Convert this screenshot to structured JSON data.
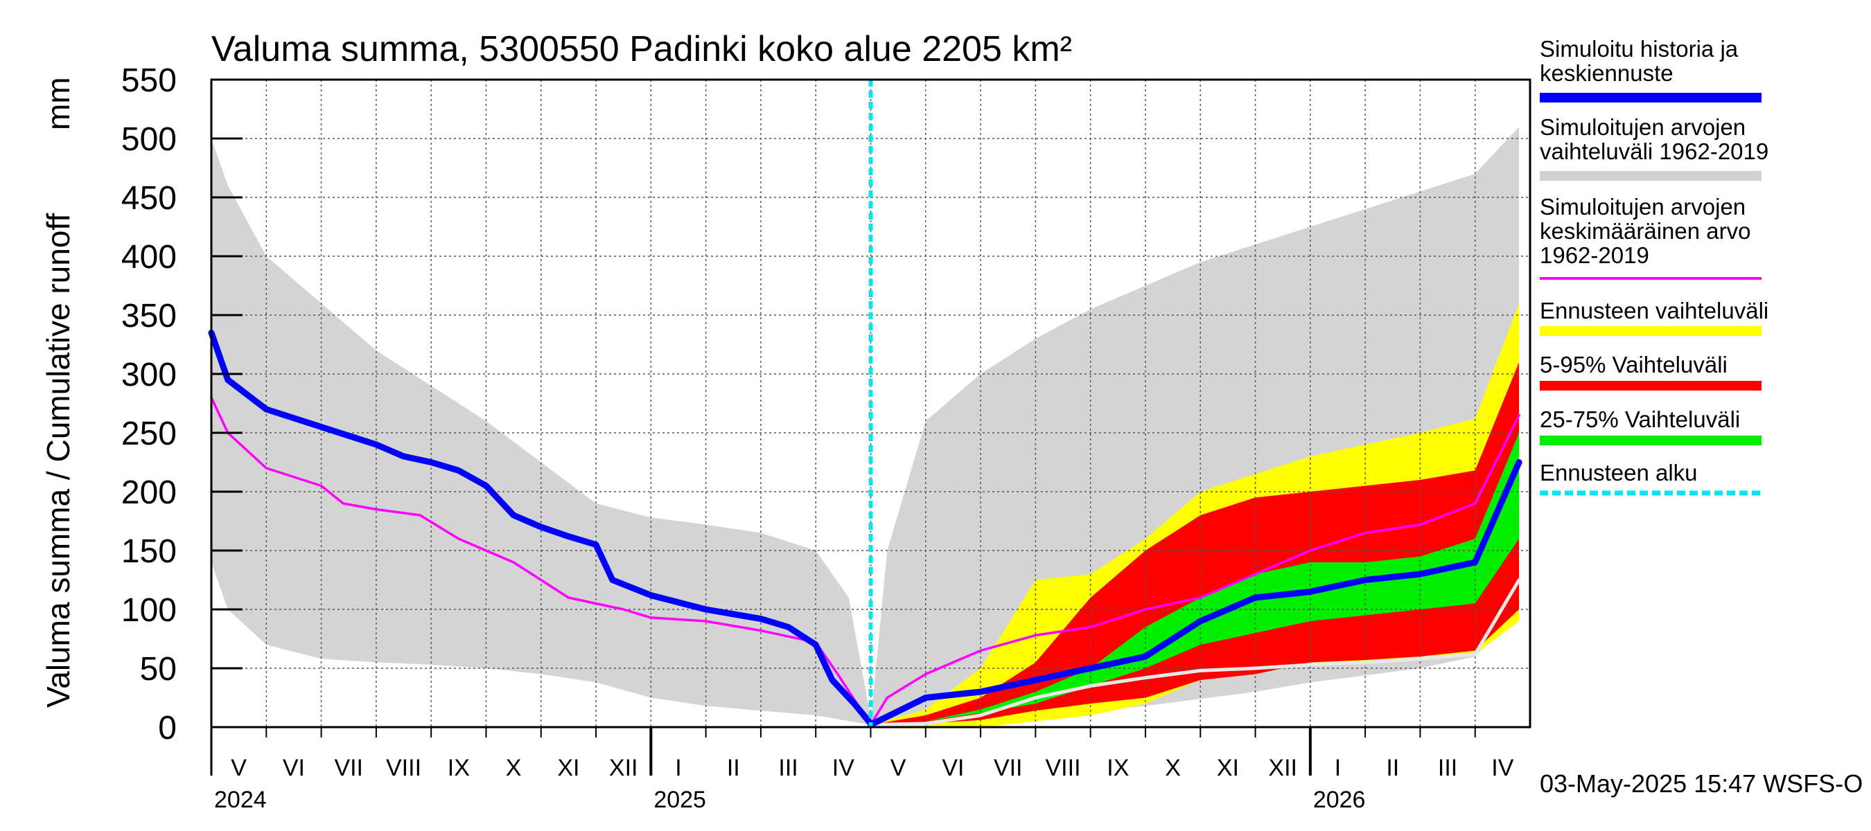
{
  "chart_data": {
    "type": "area",
    "title": "Valuma summa, 5300550 Padinki koko alue 2205 km²",
    "ylabel_fi": "Valuma summa / Cumulative runoff",
    "ylabel_unit": "mm",
    "ylim": [
      0,
      550
    ],
    "yticks": [
      0,
      50,
      100,
      150,
      200,
      250,
      300,
      350,
      400,
      450,
      500,
      550
    ],
    "month_labels": [
      "V",
      "VI",
      "VII",
      "VIII",
      "IX",
      "X",
      "XI",
      "XII",
      "I",
      "II",
      "III",
      "IV",
      "V",
      "VI",
      "VII",
      "VIII",
      "IX",
      "X",
      "XI",
      "XII",
      "I",
      "II",
      "III",
      "IV"
    ],
    "year_labels": [
      "2024",
      "2025",
      "2026"
    ],
    "forecast_start_month": 12,
    "legend": [
      {
        "label": "Simuloitu historia ja keskiennuste",
        "color": "#0000ff",
        "style": "line"
      },
      {
        "label": "Simuloitujen arvojen vaihteluväli 1962-2019",
        "color": "#d0d0d0",
        "style": "line"
      },
      {
        "label": "Simuloitujen arvojen keskimääräinen arvo 1962-2019",
        "color": "#ff00ff",
        "style": "thin"
      },
      {
        "label": "Ennusteen vaihteluväli",
        "color": "#ffff00",
        "style": "line"
      },
      {
        "label": "5-95% Vaihteluväli",
        "color": "#ff0000",
        "style": "line"
      },
      {
        "label": "25-75% Vaihteluväli",
        "color": "#00ee00",
        "style": "line"
      },
      {
        "label": "Ennusteen alku",
        "color": "#00e5ee",
        "style": "dashed"
      }
    ],
    "timestamp": "03-May-2025 15:47 WSFS-O",
    "series": {
      "history_range_upper": [
        [
          0,
          500
        ],
        [
          0.3,
          460
        ],
        [
          1,
          400
        ],
        [
          2,
          360
        ],
        [
          3,
          320
        ],
        [
          4,
          290
        ],
        [
          5,
          260
        ],
        [
          6,
          225
        ],
        [
          7,
          190
        ],
        [
          8,
          178
        ],
        [
          9,
          172
        ],
        [
          10,
          165
        ],
        [
          11,
          150
        ],
        [
          11.6,
          110
        ],
        [
          12,
          8
        ]
      ],
      "history_range_lower": [
        [
          0,
          140
        ],
        [
          0.3,
          100
        ],
        [
          1,
          70
        ],
        [
          2,
          58
        ],
        [
          3,
          55
        ],
        [
          4,
          53
        ],
        [
          5,
          50
        ],
        [
          6,
          45
        ],
        [
          7,
          38
        ],
        [
          8,
          25
        ],
        [
          9,
          18
        ],
        [
          10,
          14
        ],
        [
          11,
          10
        ],
        [
          12,
          2
        ]
      ],
      "history_mean_pre": [
        [
          0,
          280
        ],
        [
          0.3,
          250
        ],
        [
          1,
          220
        ],
        [
          2,
          205
        ],
        [
          2.4,
          190
        ],
        [
          3,
          185
        ],
        [
          3.8,
          180
        ],
        [
          4.5,
          160
        ],
        [
          5.5,
          140
        ],
        [
          6.5,
          110
        ],
        [
          7.5,
          100
        ],
        [
          8,
          93
        ],
        [
          9,
          90
        ],
        [
          10,
          82
        ],
        [
          11,
          72
        ],
        [
          11.4,
          45
        ],
        [
          12,
          2
        ]
      ],
      "simulated": [
        [
          0,
          335
        ],
        [
          0.3,
          295
        ],
        [
          1,
          270
        ],
        [
          2,
          255
        ],
        [
          3,
          240
        ],
        [
          3.5,
          230
        ],
        [
          4,
          225
        ],
        [
          4.5,
          218
        ],
        [
          5,
          205
        ],
        [
          5.5,
          180
        ],
        [
          6,
          170
        ],
        [
          6.5,
          162
        ],
        [
          7,
          155
        ],
        [
          7.3,
          125
        ],
        [
          8,
          112
        ],
        [
          9,
          100
        ],
        [
          10,
          92
        ],
        [
          10.5,
          85
        ],
        [
          11,
          70
        ],
        [
          11.3,
          40
        ],
        [
          11.7,
          20
        ],
        [
          12,
          3
        ]
      ],
      "forecast_range_upper": [
        [
          12,
          5
        ],
        [
          12.3,
          150
        ],
        [
          13,
          260
        ],
        [
          14,
          300
        ],
        [
          15,
          330
        ],
        [
          16,
          355
        ],
        [
          17,
          375
        ],
        [
          18,
          395
        ],
        [
          19,
          410
        ],
        [
          20,
          425
        ],
        [
          21,
          440
        ],
        [
          22,
          455
        ],
        [
          23,
          470
        ],
        [
          23.8,
          510
        ]
      ],
      "forecast_range_lower": [
        [
          12,
          3
        ],
        [
          13,
          4
        ],
        [
          14,
          6
        ],
        [
          15,
          10
        ],
        [
          16,
          14
        ],
        [
          17,
          18
        ],
        [
          18,
          24
        ],
        [
          19,
          30
        ],
        [
          20,
          38
        ],
        [
          21,
          44
        ],
        [
          22,
          50
        ],
        [
          23,
          60
        ],
        [
          23.8,
          100
        ]
      ],
      "mean_post": [
        [
          12,
          2
        ],
        [
          12.3,
          25
        ],
        [
          13,
          45
        ],
        [
          14,
          65
        ],
        [
          15,
          78
        ],
        [
          16,
          85
        ],
        [
          17,
          100
        ],
        [
          18,
          110
        ],
        [
          19,
          130
        ],
        [
          20,
          150
        ],
        [
          21,
          165
        ],
        [
          22,
          172
        ],
        [
          23,
          190
        ],
        [
          23.8,
          265
        ]
      ],
      "yellow_upper": [
        [
          12,
          2
        ],
        [
          13,
          15
        ],
        [
          14,
          50
        ],
        [
          15,
          125
        ],
        [
          16,
          130
        ],
        [
          17,
          160
        ],
        [
          18,
          200
        ],
        [
          19,
          215
        ],
        [
          20,
          230
        ],
        [
          21,
          240
        ],
        [
          22,
          250
        ],
        [
          23,
          262
        ],
        [
          23.8,
          360
        ]
      ],
      "yellow_lower": [
        [
          12,
          2
        ],
        [
          13,
          0
        ],
        [
          14,
          0
        ],
        [
          15,
          5
        ],
        [
          16,
          10
        ],
        [
          17,
          20
        ],
        [
          18,
          40
        ],
        [
          19,
          45
        ],
        [
          20,
          55
        ],
        [
          21,
          55
        ],
        [
          22,
          60
        ],
        [
          23,
          62
        ],
        [
          23.8,
          90
        ]
      ],
      "red_upper": [
        [
          12,
          2
        ],
        [
          13,
          10
        ],
        [
          14,
          25
        ],
        [
          15,
          55
        ],
        [
          16,
          110
        ],
        [
          17,
          150
        ],
        [
          18,
          180
        ],
        [
          19,
          195
        ],
        [
          20,
          200
        ],
        [
          21,
          205
        ],
        [
          22,
          210
        ],
        [
          23,
          218
        ],
        [
          23.8,
          310
        ]
      ],
      "red_lower": [
        [
          12,
          2
        ],
        [
          13,
          3
        ],
        [
          14,
          6
        ],
        [
          15,
          14
        ],
        [
          16,
          20
        ],
        [
          17,
          25
        ],
        [
          18,
          40
        ],
        [
          19,
          45
        ],
        [
          20,
          55
        ],
        [
          21,
          57
        ],
        [
          22,
          60
        ],
        [
          23,
          65
        ],
        [
          23.8,
          100
        ]
      ],
      "green_upper": [
        [
          12,
          2
        ],
        [
          13,
          5
        ],
        [
          14,
          15
        ],
        [
          15,
          30
        ],
        [
          16,
          50
        ],
        [
          17,
          85
        ],
        [
          18,
          110
        ],
        [
          19,
          130
        ],
        [
          20,
          140
        ],
        [
          21,
          140
        ],
        [
          22,
          145
        ],
        [
          23,
          160
        ],
        [
          23.8,
          250
        ]
      ],
      "green_lower": [
        [
          12,
          2
        ],
        [
          13,
          5
        ],
        [
          14,
          12
        ],
        [
          15,
          20
        ],
        [
          16,
          35
        ],
        [
          17,
          50
        ],
        [
          18,
          70
        ],
        [
          19,
          80
        ],
        [
          20,
          90
        ],
        [
          21,
          95
        ],
        [
          22,
          100
        ],
        [
          23,
          105
        ],
        [
          23.8,
          160
        ]
      ],
      "blue_forecast": [
        [
          12,
          2
        ],
        [
          13,
          25
        ],
        [
          14,
          30
        ],
        [
          15,
          40
        ],
        [
          16,
          50
        ],
        [
          17,
          60
        ],
        [
          18,
          90
        ],
        [
          19,
          110
        ],
        [
          20,
          115
        ],
        [
          21,
          125
        ],
        [
          22,
          130
        ],
        [
          23,
          140
        ],
        [
          23.8,
          225
        ]
      ],
      "white_low": [
        [
          12,
          2
        ],
        [
          13,
          3
        ],
        [
          14,
          10
        ],
        [
          15,
          25
        ],
        [
          16,
          35
        ],
        [
          17,
          42
        ],
        [
          18,
          48
        ],
        [
          19,
          50
        ],
        [
          20,
          53
        ],
        [
          21,
          55
        ],
        [
          22,
          58
        ],
        [
          23,
          62
        ],
        [
          23.8,
          125
        ]
      ]
    }
  }
}
